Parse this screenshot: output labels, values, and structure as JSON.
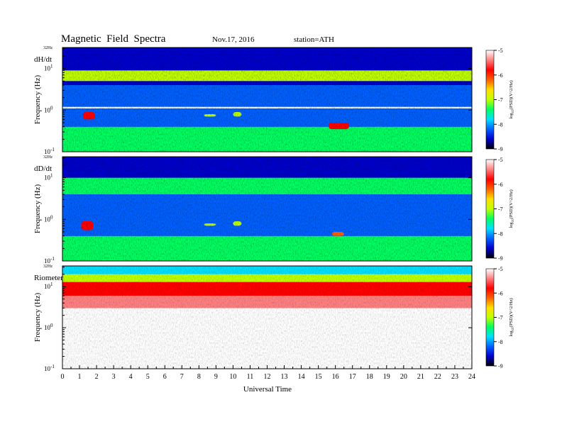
{
  "title": "Magnetic  Field  Spectra",
  "date": "Nov.17, 2016",
  "station": "station=ATH",
  "x_axis": {
    "label": "Universal Time",
    "min": 0,
    "max": 24,
    "ticks": [
      "0",
      "1",
      "2",
      "3",
      "4",
      "5",
      "6",
      "7",
      "8",
      "9",
      "10",
      "11",
      "12",
      "13",
      "14",
      "15",
      "16",
      "17",
      "18",
      "19",
      "20",
      "21",
      "22",
      "23",
      "24"
    ]
  },
  "y_axis": {
    "label": "Frequency  (Hz)",
    "scale": "log",
    "top_label": "32Hz",
    "ticks": [
      {
        "base": "10",
        "exp": "1",
        "value": 10
      },
      {
        "base": "10",
        "exp": "0",
        "value": 1
      },
      {
        "base": "10",
        "exp": "-1",
        "value": 0.1
      }
    ]
  },
  "colorbar": {
    "label": "log10(PSD)(V^2/Hz)",
    "label_text": "log",
    "label_sub": "10",
    "label_rest": "(PSD)(V^2/Hz)",
    "min": -9,
    "max": -5,
    "ticks": [
      "-5",
      "-6",
      "-7",
      "-8",
      "-9"
    ],
    "colors": [
      "#000000",
      "#0000cc",
      "#0060ff",
      "#00e0ff",
      "#00ff60",
      "#c0ff00",
      "#ffe000",
      "#ff6000",
      "#ff0000",
      "#ff8080",
      "#ffffff"
    ]
  },
  "chart_data": [
    {
      "type": "heatmap",
      "panel": "dH/dt",
      "title": "Magnetic  Field  Spectra",
      "xlabel": "Universal Time",
      "ylabel": "Frequency  (Hz)",
      "xlim": [
        0,
        24
      ],
      "ylim": [
        0.1,
        32
      ],
      "yscale": "log",
      "colorscale_range": [
        -9,
        -5
      ],
      "features": [
        {
          "description": "low-frequency background",
          "freq_range": [
            0.1,
            0.4
          ],
          "time_range": [
            0,
            24
          ],
          "log_psd": -7.5
        },
        {
          "description": "mid-band background",
          "freq_range": [
            0.4,
            4
          ],
          "time_range": [
            0,
            24
          ],
          "log_psd": -8.3
        },
        {
          "description": "band",
          "freq_range": [
            5,
            9
          ],
          "time_range": [
            0,
            24
          ],
          "log_psd": -7.2
        },
        {
          "description": "burst",
          "freq_range": [
            0.6,
            0.9
          ],
          "time_range": [
            1.2,
            1.9
          ],
          "log_psd": -6.0
        },
        {
          "description": "burst",
          "freq_range": [
            0.7,
            0.8
          ],
          "time_range": [
            8.3,
            9.0
          ],
          "log_psd": -7.2
        },
        {
          "description": "burst",
          "freq_range": [
            0.7,
            0.9
          ],
          "time_range": [
            10.0,
            10.5
          ],
          "log_psd": -7.0
        },
        {
          "description": "burst",
          "freq_range": [
            0.35,
            0.5
          ],
          "time_range": [
            15.6,
            16.8
          ],
          "log_psd": -6.0
        },
        {
          "description": "line",
          "freq_range": [
            1.1,
            1.2
          ],
          "time_range": [
            0,
            24
          ],
          "log_psd": -5.2
        }
      ]
    },
    {
      "type": "heatmap",
      "panel": "dD/dt",
      "xlabel": "Universal Time",
      "ylabel": "Frequency  (Hz)",
      "xlim": [
        0,
        24
      ],
      "ylim": [
        0.1,
        32
      ],
      "yscale": "log",
      "colorscale_range": [
        -9,
        -5
      ],
      "features": [
        {
          "description": "low-frequency background",
          "freq_range": [
            0.1,
            0.4
          ],
          "time_range": [
            0,
            24
          ],
          "log_psd": -7.5
        },
        {
          "description": "mid-band background",
          "freq_range": [
            0.4,
            4
          ],
          "time_range": [
            0,
            24
          ],
          "log_psd": -8.3
        },
        {
          "description": "band",
          "freq_range": [
            4,
            10
          ],
          "time_range": [
            0,
            24
          ],
          "log_psd": -7.4
        },
        {
          "description": "burst",
          "freq_range": [
            0.55,
            0.9
          ],
          "time_range": [
            1.1,
            1.8
          ],
          "log_psd": -6.0
        },
        {
          "description": "burst",
          "freq_range": [
            0.7,
            0.8
          ],
          "time_range": [
            8.3,
            9.0
          ],
          "log_psd": -7.2
        },
        {
          "description": "burst",
          "freq_range": [
            0.7,
            0.9
          ],
          "time_range": [
            10.0,
            10.5
          ],
          "log_psd": -7.0
        },
        {
          "description": "burst",
          "freq_range": [
            0.4,
            0.5
          ],
          "time_range": [
            15.8,
            16.5
          ],
          "log_psd": -6.3
        }
      ]
    },
    {
      "type": "heatmap",
      "panel": "Riometer",
      "xlabel": "Universal Time",
      "ylabel": "Frequency  (Hz)",
      "xlim": [
        0,
        24
      ],
      "ylim": [
        0.1,
        32
      ],
      "yscale": "log",
      "colorscale_range": [
        -9,
        -5
      ],
      "features": [
        {
          "description": "top band",
          "freq_range": [
            20,
            32
          ],
          "time_range": [
            0,
            24
          ],
          "log_psd": -8.0
        },
        {
          "description": "band",
          "freq_range": [
            13,
            20
          ],
          "time_range": [
            0,
            24
          ],
          "log_psd": -7.0
        },
        {
          "description": "band",
          "freq_range": [
            6,
            13
          ],
          "time_range": [
            0,
            24
          ],
          "log_psd": -6.0
        },
        {
          "description": "band",
          "freq_range": [
            3,
            6
          ],
          "time_range": [
            0,
            24
          ],
          "log_psd": -5.3
        },
        {
          "description": "sparse speckle",
          "freq_range": [
            0.1,
            1
          ],
          "time_range": [
            13.8,
            23.5
          ],
          "log_psd": -5.2
        }
      ]
    }
  ]
}
